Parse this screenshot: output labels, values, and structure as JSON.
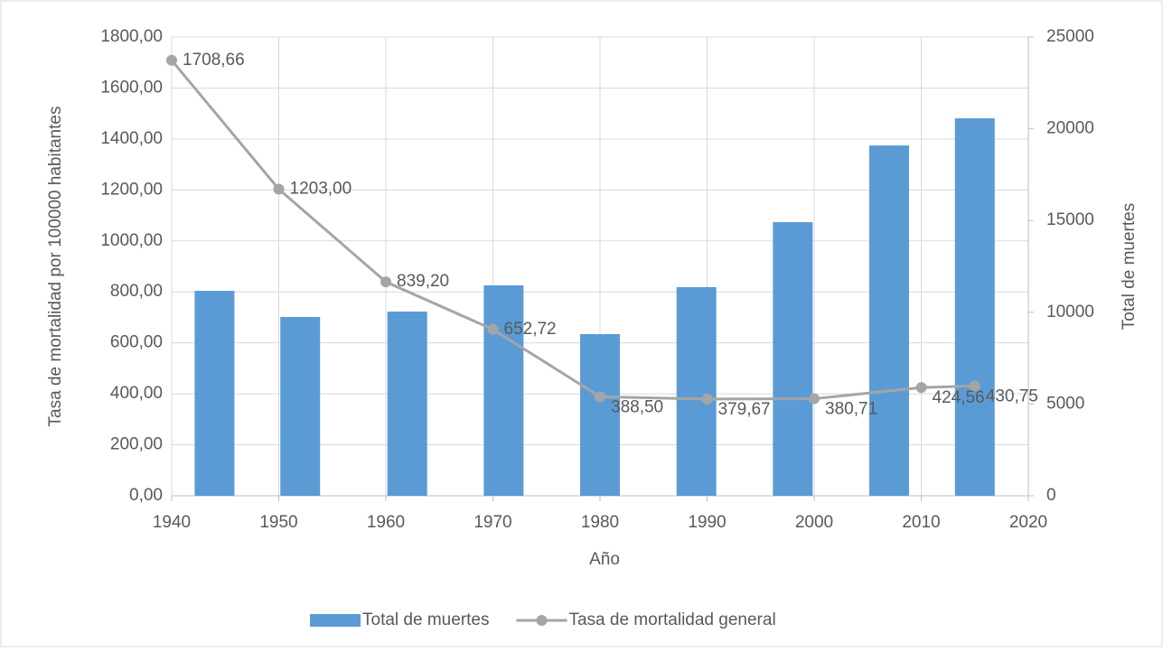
{
  "chart_data": {
    "type": "bar-line",
    "x_label": "Año",
    "y_label": "Tasa de mortalidad por 100000 habitantes",
    "y2_label": "Total de muertes",
    "xlim": [
      1940,
      2020
    ],
    "xticks": [
      1940,
      1950,
      1960,
      1970,
      1980,
      1990,
      2000,
      2010,
      2020
    ],
    "ylim": [
      0,
      1800
    ],
    "yticks": [
      {
        "value": 0,
        "label": "0,00"
      },
      {
        "value": 200,
        "label": "200,00"
      },
      {
        "value": 400,
        "label": "400,00"
      },
      {
        "value": 600,
        "label": "600,00"
      },
      {
        "value": 800,
        "label": "800,00"
      },
      {
        "value": 1000,
        "label": "1000,00"
      },
      {
        "value": 1200,
        "label": "1200,00"
      },
      {
        "value": 1400,
        "label": "1400,00"
      },
      {
        "value": 1600,
        "label": "1600,00"
      },
      {
        "value": 1800,
        "label": "1800,00"
      }
    ],
    "y2lim": [
      0,
      25000
    ],
    "y2ticks": [
      0,
      5000,
      10000,
      15000,
      20000,
      25000
    ],
    "grid": true,
    "legend": "bottom",
    "series": [
      {
        "name": "Total de muertes",
        "type": "bar",
        "axis": "y2",
        "color": "#5b9bd5",
        "x": [
          1944,
          1952,
          1962,
          1971,
          1980,
          1989,
          1998,
          2007,
          2015
        ],
        "values": [
          11170,
          9745,
          10040,
          11467,
          8810,
          11370,
          14910,
          19090,
          20570
        ]
      },
      {
        "name": "Tasa de mortalidad general",
        "type": "line",
        "axis": "y",
        "color": "#a5a5a5",
        "x": [
          1940,
          1950,
          1960,
          1970,
          1980,
          1990,
          2000,
          2010,
          2015
        ],
        "values": [
          1708.66,
          1203.0,
          839.2,
          652.72,
          388.5,
          379.67,
          380.71,
          424.56,
          430.75
        ],
        "value_labels": [
          "1708,66",
          "1203,00",
          "839,20",
          "652,72",
          "388,50",
          "379,67",
          "380,71",
          "424,56",
          "430,75"
        ]
      }
    ]
  }
}
